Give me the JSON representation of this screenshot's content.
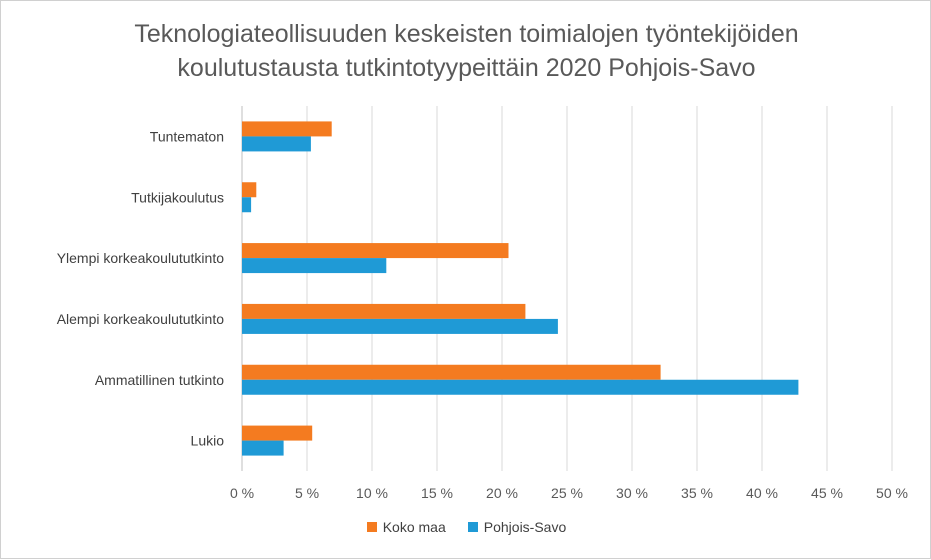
{
  "chart_data": {
    "type": "bar",
    "orientation": "horizontal",
    "title_lines": [
      "Teknologiateollisuuden keskeisten toimialojen työntekijöiden",
      "koulutustausta tutkintotyypeittäin 2020 Pohjois-Savo"
    ],
    "categories": [
      "Tuntematon",
      "Tutkijakoulutus",
      "Ylempi korkeakoulututkinto",
      "Alempi korkeakoulututkinto",
      "Ammatillinen tutkinto",
      "Lukio"
    ],
    "series": [
      {
        "name": "Koko maa",
        "color": "#f47b20",
        "values": [
          6.9,
          1.1,
          20.5,
          21.8,
          32.2,
          5.4
        ]
      },
      {
        "name": "Pohjois-Savo",
        "color": "#1f9ad6",
        "values": [
          5.3,
          0.7,
          11.1,
          24.3,
          42.8,
          3.2
        ]
      }
    ],
    "xlim": [
      0,
      50
    ],
    "xticks": [
      "0 %",
      "5 %",
      "10 %",
      "15 %",
      "20 %",
      "25 %",
      "30 %",
      "35 %",
      "40 %",
      "45 %",
      "50 %"
    ],
    "xlabel": "",
    "ylabel": "",
    "grid": true,
    "legend_position": "bottom"
  }
}
